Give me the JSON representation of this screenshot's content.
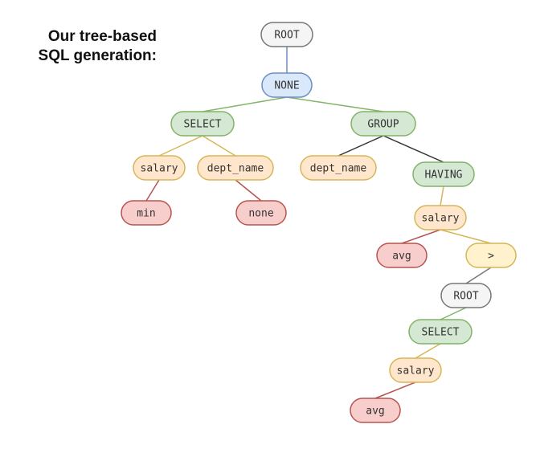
{
  "title": {
    "line1": "Our tree-based",
    "line2": "SQL generation:"
  },
  "colors": {
    "gray": {
      "fill": "#f5f5f5",
      "stroke": "#777777"
    },
    "blue": {
      "fill": "#dae8fc",
      "stroke": "#6c8ebf"
    },
    "green": {
      "fill": "#d5e8d4",
      "stroke": "#82b366"
    },
    "yellow": {
      "fill": "#ffe6cc",
      "stroke": "#d6b656"
    },
    "red": {
      "fill": "#f8cecc",
      "stroke": "#b85450"
    },
    "lightyellow": {
      "fill": "#fff2cc",
      "stroke": "#d6b656"
    }
  },
  "nodes": [
    {
      "id": "root1",
      "label": "ROOT",
      "color": "gray"
    },
    {
      "id": "none1",
      "label": "NONE",
      "color": "blue"
    },
    {
      "id": "select1",
      "label": "SELECT",
      "color": "green"
    },
    {
      "id": "group",
      "label": "GROUP",
      "color": "green"
    },
    {
      "id": "salary1",
      "label": "salary",
      "color": "yellow"
    },
    {
      "id": "dept1",
      "label": "dept_name",
      "color": "yellow"
    },
    {
      "id": "dept2",
      "label": "dept_name",
      "color": "yellow"
    },
    {
      "id": "having",
      "label": "HAVING",
      "color": "green"
    },
    {
      "id": "min",
      "label": "min",
      "color": "red"
    },
    {
      "id": "none2",
      "label": "none",
      "color": "red"
    },
    {
      "id": "salary2",
      "label": "salary",
      "color": "yellow"
    },
    {
      "id": "avg1",
      "label": "avg",
      "color": "red"
    },
    {
      "id": "gt",
      "label": ">",
      "color": "lightyellow"
    },
    {
      "id": "root2",
      "label": "ROOT",
      "color": "gray"
    },
    {
      "id": "select2",
      "label": "SELECT",
      "color": "green"
    },
    {
      "id": "salary3",
      "label": "salary",
      "color": "yellow"
    },
    {
      "id": "avg2",
      "label": "avg",
      "color": "red"
    }
  ],
  "edges": [
    {
      "from": "root1",
      "to": "none1",
      "color": "#6c8ebf"
    },
    {
      "from": "none1",
      "to": "select1",
      "color": "#82b366"
    },
    {
      "from": "none1",
      "to": "group",
      "color": "#82b366"
    },
    {
      "from": "select1",
      "to": "salary1",
      "color": "#d6b656"
    },
    {
      "from": "select1",
      "to": "dept1",
      "color": "#d6b656"
    },
    {
      "from": "group",
      "to": "dept2",
      "color": "#333333"
    },
    {
      "from": "group",
      "to": "having",
      "color": "#333333"
    },
    {
      "from": "salary1",
      "to": "min",
      "color": "#b85450"
    },
    {
      "from": "dept1",
      "to": "none2",
      "color": "#b85450"
    },
    {
      "from": "having",
      "to": "salary2",
      "color": "#d6b656"
    },
    {
      "from": "salary2",
      "to": "avg1",
      "color": "#b85450"
    },
    {
      "from": "salary2",
      "to": "gt",
      "color": "#d6b656"
    },
    {
      "from": "gt",
      "to": "root2",
      "color": "#777777"
    },
    {
      "from": "root2",
      "to": "select2",
      "color": "#82b366"
    },
    {
      "from": "select2",
      "to": "salary3",
      "color": "#d6b656"
    },
    {
      "from": "salary3",
      "to": "avg2",
      "color": "#b85450"
    }
  ]
}
